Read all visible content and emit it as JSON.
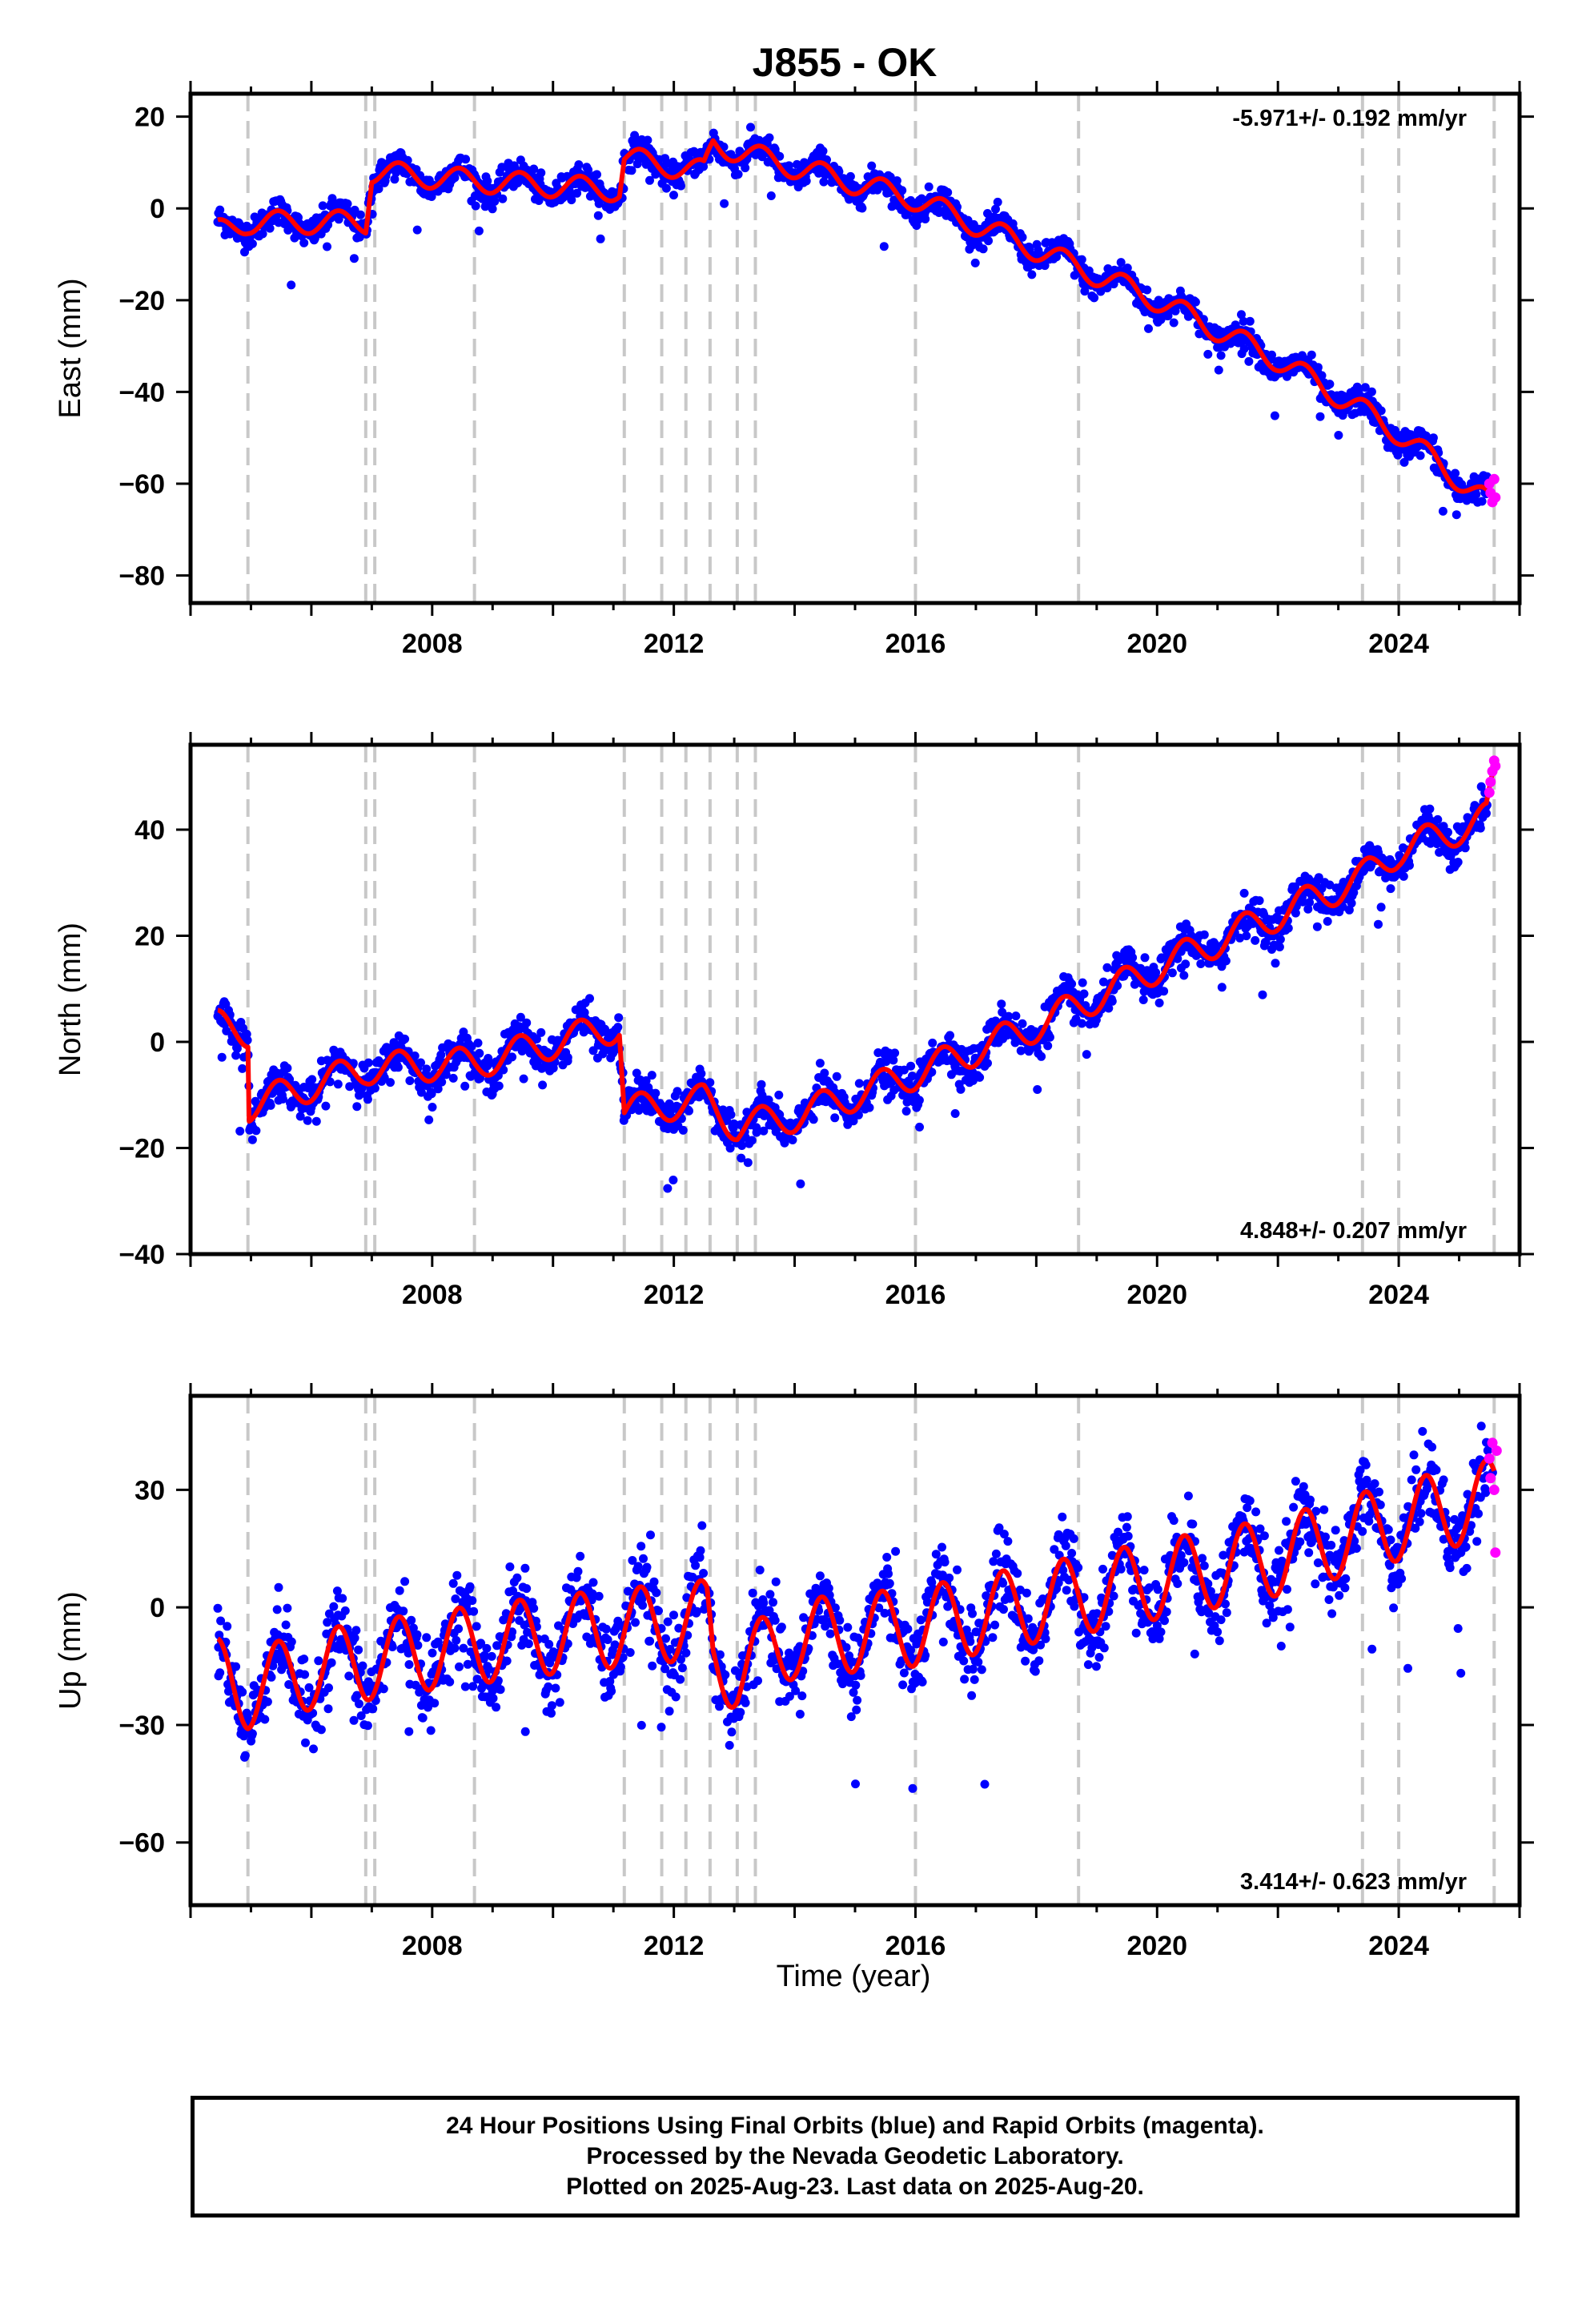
{
  "title": "J855 - OK",
  "xlabel": "Time (year)",
  "footer": [
    "24 Hour Positions Using Final Orbits (blue) and Rapid Orbits (magenta).",
    "Processed by the Nevada Geodetic Laboratory.",
    "Plotted on 2025-Aug-23. Last data on 2025-Aug-20."
  ],
  "colors": {
    "final_orbits": "#0000ff",
    "rapid_orbits": "#ff00ff",
    "model": "#ff0000",
    "event_lines": "#c8c8c8"
  },
  "chart_data": [
    {
      "type": "scatter",
      "ylabel": "East (mm)",
      "rate": "-5.971+/- 0.192 mm/yr",
      "rate_position": "top-right",
      "xlim": [
        2004.0,
        2026.0
      ],
      "ylim": [
        -86,
        25
      ],
      "xticks": [
        2008,
        2012,
        2016,
        2020,
        2024
      ],
      "yticks": [
        -80,
        -60,
        -40,
        -20,
        0,
        20
      ],
      "event_lines": [
        2004.95,
        2006.9,
        2007.05,
        2008.7,
        2011.18,
        2011.8,
        2012.2,
        2012.6,
        2013.05,
        2013.35,
        2016.0,
        2018.7,
        2023.4,
        2024.0,
        2025.58
      ],
      "trend_knots": [
        [
          2004.45,
          -5
        ],
        [
          2004.95,
          -3
        ],
        [
          2006.9,
          -3
        ],
        [
          2007.0,
          8
        ],
        [
          2008.7,
          6
        ],
        [
          2011.1,
          4
        ],
        [
          2011.18,
          11
        ],
        [
          2012.5,
          8
        ],
        [
          2012.65,
          14
        ],
        [
          2014,
          9
        ],
        [
          2016,
          2
        ],
        [
          2018,
          -9
        ],
        [
          2020,
          -20
        ],
        [
          2022,
          -33
        ],
        [
          2023.4,
          -44
        ],
        [
          2024,
          -49
        ],
        [
          2025.58,
          -65
        ]
      ],
      "steps": [
        [
          2004.95,
          10
        ],
        [
          2006.9,
          7
        ]
      ],
      "seasonal_amplitude": 2.5,
      "noise": 1.5,
      "rapid_points": [
        [
          2025.5,
          -60
        ],
        [
          2025.52,
          -62
        ],
        [
          2025.55,
          -64
        ],
        [
          2025.58,
          -59
        ],
        [
          2025.6,
          -63
        ]
      ]
    },
    {
      "type": "scatter",
      "ylabel": "North (mm)",
      "rate": "4.848+/- 0.207 mm/yr",
      "rate_position": "bottom-right",
      "xlim": [
        2004.0,
        2026.0
      ],
      "ylim": [
        -40,
        56
      ],
      "xticks": [
        2008,
        2012,
        2016,
        2020,
        2024
      ],
      "yticks": [
        -40,
        -20,
        0,
        20,
        40
      ],
      "event_lines": [
        2004.95,
        2006.9,
        2007.05,
        2008.7,
        2011.18,
        2011.8,
        2012.2,
        2012.6,
        2013.05,
        2013.35,
        2016.0,
        2018.7,
        2023.4,
        2024.0,
        2025.58
      ],
      "trend_knots": [
        [
          2004.45,
          3
        ],
        [
          2004.95,
          2
        ],
        [
          2004.97,
          -12
        ],
        [
          2006.9,
          -5
        ],
        [
          2008.7,
          -4
        ],
        [
          2011.1,
          3
        ],
        [
          2011.18,
          -13
        ],
        [
          2012.5,
          -11
        ],
        [
          2013.05,
          -16
        ],
        [
          2014,
          -14
        ],
        [
          2016,
          -6
        ],
        [
          2018,
          3
        ],
        [
          2020,
          14
        ],
        [
          2022,
          24
        ],
        [
          2023.4,
          31
        ],
        [
          2024,
          36
        ],
        [
          2025.45,
          42
        ],
        [
          2025.58,
          50
        ]
      ],
      "steps": [],
      "seasonal_amplitude": 3,
      "noise": 1.8,
      "rapid_points": [
        [
          2025.5,
          47
        ],
        [
          2025.52,
          49
        ],
        [
          2025.55,
          51
        ],
        [
          2025.58,
          53
        ],
        [
          2025.6,
          52
        ]
      ]
    },
    {
      "type": "scatter",
      "ylabel": "Up (mm)",
      "rate": "3.414+/- 0.623 mm/yr",
      "rate_position": "bottom-right",
      "xlim": [
        2004.0,
        2026.0
      ],
      "ylim": [
        -76,
        54
      ],
      "xticks": [
        2008,
        2012,
        2016,
        2020,
        2024
      ],
      "yticks": [
        -60,
        -30,
        0,
        30
      ],
      "event_lines": [
        2004.95,
        2006.9,
        2007.05,
        2008.7,
        2011.18,
        2011.8,
        2012.2,
        2012.6,
        2013.05,
        2013.35,
        2016.0,
        2018.7,
        2023.4,
        2024.0,
        2025.58
      ],
      "trend_knots": [
        [
          2004.45,
          -18
        ],
        [
          2004.95,
          -21
        ],
        [
          2006,
          -16
        ],
        [
          2008,
          -11
        ],
        [
          2010,
          -7
        ],
        [
          2012.55,
          -3
        ],
        [
          2012.65,
          -14
        ],
        [
          2013.05,
          -16
        ],
        [
          2014,
          -8
        ],
        [
          2016,
          -5
        ],
        [
          2018,
          1
        ],
        [
          2020,
          7
        ],
        [
          2022,
          13
        ],
        [
          2024,
          22
        ],
        [
          2025.58,
          28
        ]
      ],
      "steps": [],
      "seasonal_amplitude": 10,
      "noise": 5,
      "rapid_points": [
        [
          2025.5,
          38
        ],
        [
          2025.52,
          33
        ],
        [
          2025.55,
          42
        ],
        [
          2025.58,
          30
        ],
        [
          2025.6,
          14
        ],
        [
          2025.62,
          40
        ]
      ]
    }
  ]
}
